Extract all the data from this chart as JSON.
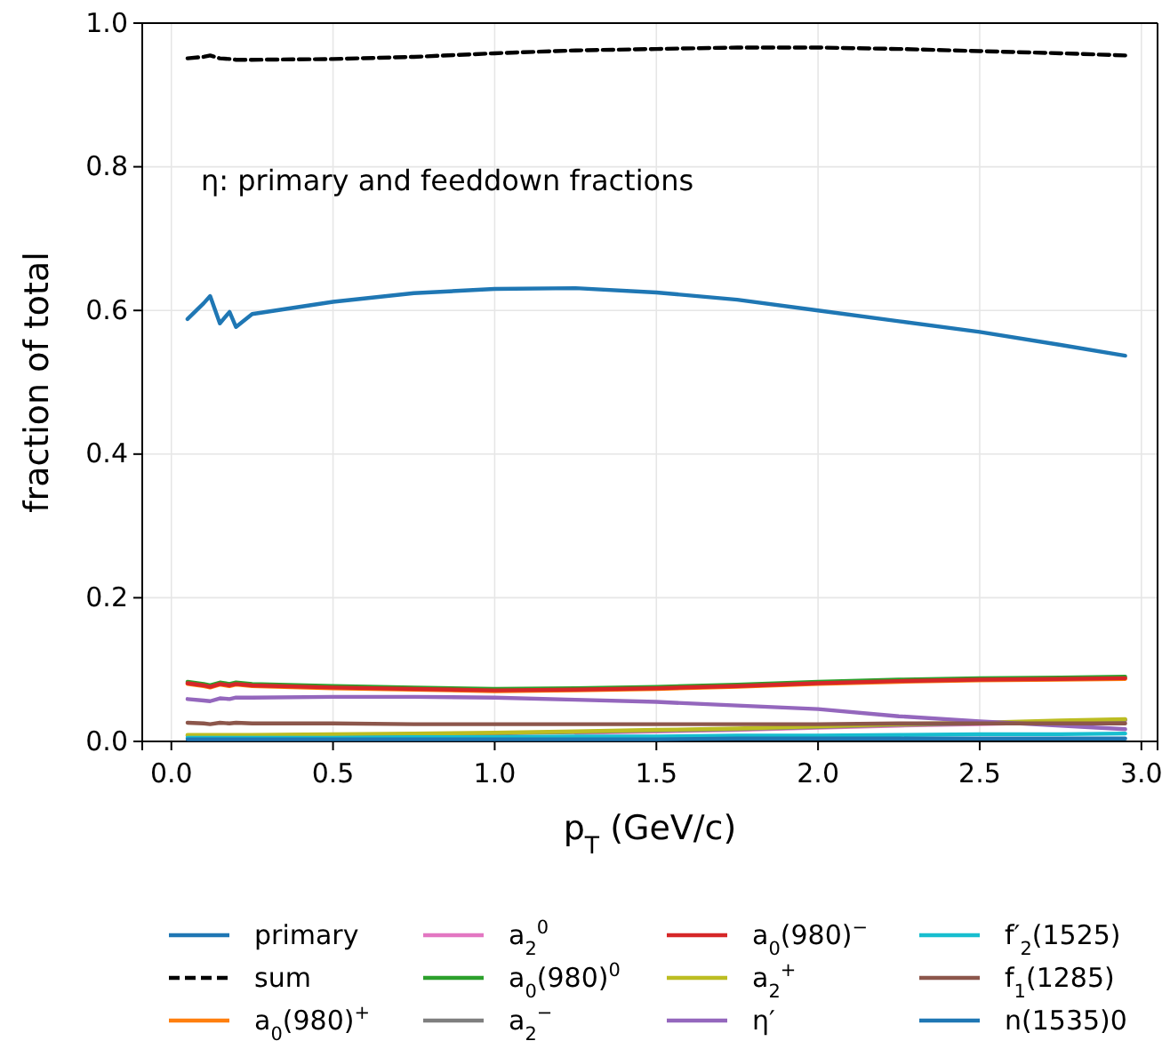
{
  "chart_data": {
    "type": "line",
    "xlabel": "p$_{T}$ (GeV/c)",
    "ylabel": "fraction of total",
    "annotations": [
      "η: primary and feeddown fractions"
    ],
    "x": [
      0.05,
      0.1,
      0.12,
      0.15,
      0.18,
      0.2,
      0.25,
      0.5,
      0.75,
      1.0,
      1.25,
      1.5,
      1.75,
      2.0,
      2.25,
      2.5,
      2.75,
      2.95
    ],
    "xlim": [
      -0.09,
      3.05
    ],
    "xticks": [
      {
        "value": 0,
        "label": "0.0"
      },
      0.5,
      {
        "value": 1,
        "label": "1.0"
      },
      1.5,
      {
        "value": 2,
        "label": "2.0"
      },
      2.5,
      {
        "value": 3,
        "label": "3.0"
      }
    ],
    "ylim": [
      0,
      1
    ],
    "yticks": [
      {
        "value": 0,
        "label": "0.0"
      },
      0.2,
      0.4,
      0.6,
      0.8,
      {
        "value": 1,
        "label": "1.0"
      }
    ],
    "grid": true,
    "legend": "bottom",
    "marker": "none",
    "series": [
      {
        "name": "primary",
        "color": "#1f77b4",
        "values": [
          0.588,
          0.61,
          0.62,
          0.582,
          0.598,
          0.577,
          0.595,
          0.612,
          0.624,
          0.63,
          0.631,
          0.625,
          0.615,
          0.6,
          0.585,
          0.57,
          0.552,
          0.537
        ]
      },
      {
        "name": "sum",
        "color": "#000000",
        "line_style": "dashed",
        "values": [
          0.951,
          0.953,
          0.955,
          0.951,
          0.95,
          0.949,
          0.949,
          0.95,
          0.953,
          0.958,
          0.962,
          0.964,
          0.966,
          0.966,
          0.964,
          0.961,
          0.958,
          0.955
        ]
      },
      {
        "name": "a$_{0}$(980)$^{+}$",
        "color": "#ff7f0e",
        "values": [
          0.08,
          0.077,
          0.075,
          0.079,
          0.077,
          0.079,
          0.077,
          0.074,
          0.072,
          0.07,
          0.071,
          0.073,
          0.076,
          0.08,
          0.083,
          0.085,
          0.086,
          0.087
        ]
      },
      {
        "name": "a$_{2}$$^{0}$",
        "color": "#e377c2",
        "values": [
          null,
          null,
          null,
          null,
          null,
          null,
          null,
          null,
          null,
          null,
          0.012,
          0.014,
          0.016,
          0.019,
          0.022,
          0.024,
          0.027,
          0.029
        ]
      },
      {
        "name": "a$_{0}$(980)$^{0}$",
        "color": "#2ca02c",
        "values": [
          0.083,
          0.08,
          0.078,
          0.082,
          0.08,
          0.082,
          0.08,
          0.077,
          0.075,
          0.073,
          0.074,
          0.076,
          0.079,
          0.083,
          0.086,
          0.088,
          0.089,
          0.09
        ]
      },
      {
        "name": "a$_{2}$$^{−}$",
        "color": "#7f7f7f",
        "values": [
          0.008,
          0.008,
          0.008,
          0.008,
          0.008,
          0.008,
          0.008,
          0.009,
          0.01,
          0.011,
          0.013,
          0.015,
          0.017,
          0.02,
          0.023,
          0.025,
          0.028,
          0.03
        ]
      },
      {
        "name": "a$_{0}$(980)$^{−}$",
        "color": "#d62728",
        "values": [
          0.081,
          0.078,
          0.076,
          0.08,
          0.078,
          0.08,
          0.078,
          0.075,
          0.073,
          0.071,
          0.072,
          0.074,
          0.077,
          0.081,
          0.084,
          0.086,
          0.087,
          0.088
        ]
      },
      {
        "name": "a$_{2}$$^{+}$",
        "color": "#bcbd22",
        "values": [
          0.009,
          0.009,
          0.009,
          0.009,
          0.009,
          0.009,
          0.009,
          0.01,
          0.011,
          0.012,
          0.014,
          0.016,
          0.018,
          0.021,
          0.024,
          0.026,
          0.029,
          0.031
        ]
      },
      {
        "name": "η′",
        "color": "#9467bd",
        "values": [
          0.059,
          0.057,
          0.056,
          0.06,
          0.059,
          0.061,
          0.061,
          0.062,
          0.062,
          0.061,
          0.058,
          0.055,
          0.05,
          0.045,
          0.035,
          0.028,
          0.022,
          0.017
        ]
      },
      {
        "name": "f′$_{2}$(1525)",
        "color": "#17becf",
        "values": [
          0.005,
          0.005,
          0.005,
          0.005,
          0.005,
          0.005,
          0.005,
          0.005,
          0.006,
          0.006,
          0.007,
          0.007,
          0.008,
          0.008,
          0.009,
          0.01,
          0.01,
          0.011
        ]
      },
      {
        "name": "f$_{1}$(1285)",
        "color": "#8c564b",
        "values": [
          0.026,
          0.025,
          0.024,
          0.026,
          0.025,
          0.026,
          0.025,
          0.025,
          0.024,
          0.024,
          0.024,
          0.024,
          0.024,
          0.024,
          0.025,
          0.025,
          0.025,
          0.025
        ]
      },
      {
        "name": "n(1535)0",
        "color": "#1f77b4",
        "values": [
          0.003,
          0.003,
          0.003,
          0.003,
          0.003,
          0.003,
          0.003,
          0.003,
          0.003,
          0.003,
          0.003,
          0.003,
          0.004,
          0.004,
          0.004,
          0.004,
          0.004,
          0.004
        ]
      }
    ]
  }
}
